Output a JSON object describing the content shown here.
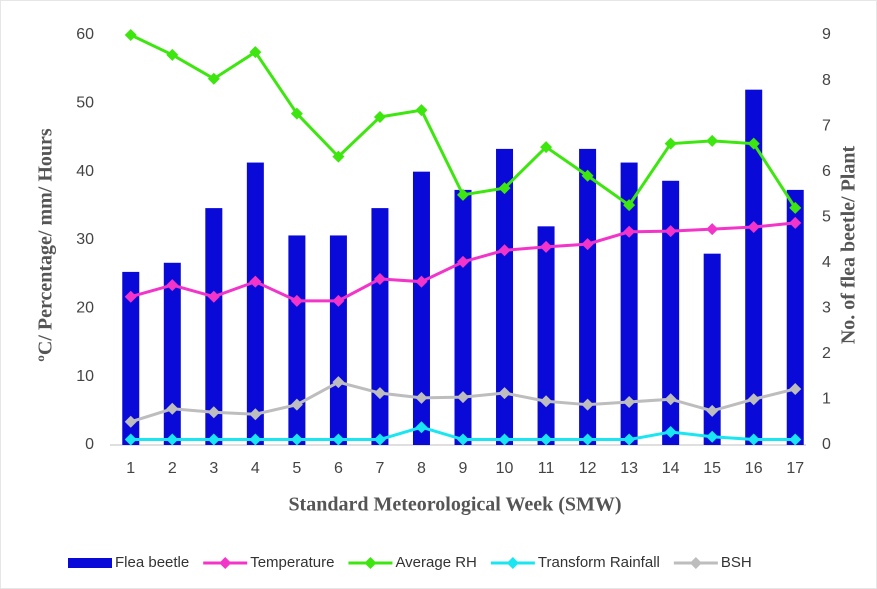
{
  "chart_data": {
    "type": "combo",
    "x_label": "Standard Meteorological Week (SMW)",
    "y_label": "ºC/ Percentage/ mm/ Hours",
    "y2_label": "No. of flea beetle/ Plant",
    "categories": [
      "1",
      "2",
      "3",
      "4",
      "5",
      "6",
      "7",
      "8",
      "9",
      "10",
      "11",
      "12",
      "13",
      "14",
      "15",
      "16",
      "17"
    ],
    "ylim": [
      0,
      60
    ],
    "yticks": [
      0,
      10,
      20,
      30,
      40,
      50,
      60
    ],
    "y2lim": [
      0,
      9
    ],
    "y2ticks": [
      0,
      1,
      2,
      3,
      4,
      5,
      6,
      7,
      8,
      9
    ],
    "grid": false,
    "legend": "bottom",
    "series": [
      {
        "name": "Flea beetle",
        "type": "bar",
        "axis": "y2",
        "color": "#0a0ad8",
        "values": [
          3.8,
          4.0,
          5.2,
          6.2,
          4.6,
          4.6,
          5.2,
          6.0,
          5.6,
          6.5,
          4.8,
          6.5,
          6.2,
          5.8,
          4.2,
          7.8,
          5.6
        ]
      },
      {
        "name": "Temperature",
        "type": "line",
        "color": "#f235c8",
        "values": [
          21.7,
          23.4,
          21.7,
          23.9,
          21.1,
          21.1,
          24.3,
          23.9,
          26.8,
          28.5,
          29.0,
          29.4,
          31.2,
          31.3,
          31.6,
          31.9,
          32.5
        ]
      },
      {
        "name": "Average RH",
        "type": "line",
        "color": "#3ee60f",
        "values": [
          60,
          57.1,
          53.6,
          57.5,
          48.5,
          42.2,
          48.0,
          49.0,
          36.6,
          37.6,
          43.6,
          39.4,
          35.1,
          44.1,
          44.5,
          44.1,
          34.7
        ]
      },
      {
        "name": "Transform Rainfall",
        "type": "line",
        "color": "#19e6f0",
        "values": [
          0.8,
          0.8,
          0.8,
          0.8,
          0.8,
          0.8,
          0.8,
          2.6,
          0.8,
          0.8,
          0.8,
          0.8,
          0.8,
          1.9,
          1.2,
          0.8,
          0.8
        ]
      },
      {
        "name": "BSH",
        "type": "line",
        "color": "#bdbdbd",
        "values": [
          3.4,
          5.3,
          4.8,
          4.5,
          5.9,
          9.2,
          7.6,
          6.9,
          7.0,
          7.6,
          6.4,
          5.9,
          6.3,
          6.7,
          5.0,
          6.7,
          8.2
        ]
      }
    ]
  }
}
